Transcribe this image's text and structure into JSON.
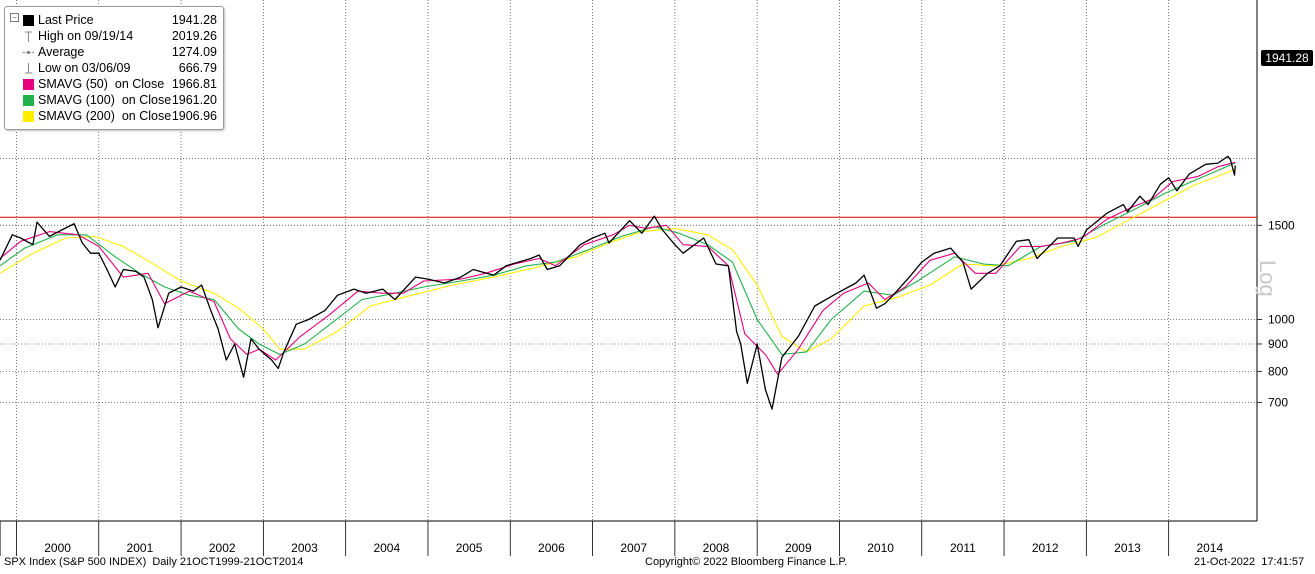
{
  "legend": {
    "items": [
      {
        "label": "Last Price",
        "value": "1941.28",
        "color": "#000000",
        "icon": "square-icon"
      },
      {
        "label": "High on 09/19/14",
        "value": "2019.26",
        "color": "#888888",
        "icon": "high-marker-icon"
      },
      {
        "label": "Average",
        "value": "1274.09",
        "color": "#888888",
        "icon": "average-line-icon"
      },
      {
        "label": "Low on 03/06/09",
        "value": "666.79",
        "color": "#888888",
        "icon": "low-marker-icon"
      },
      {
        "label": "SMAVG (50)  on Close",
        "value": "1966.81",
        "color": "#e6007e",
        "icon": "square-icon"
      },
      {
        "label": "SMAVG (100)  on Close",
        "value": "1961.20",
        "color": "#22b14c",
        "icon": "square-icon"
      },
      {
        "label": "SMAVG (200)  on Close",
        "value": "1906.96",
        "color": "#ffee00",
        "icon": "square-icon"
      }
    ]
  },
  "badge": {
    "last_value": "1941.28"
  },
  "axis_label": "Log",
  "footer": {
    "left": "SPX Index (S&P 500 INDEX)  Daily 21OCT1999-21OCT2014",
    "center": "Copyright© 2022 Bloomberg Finance L.P.",
    "right": "21-Oct-2022  17:41:57"
  },
  "chart_data": {
    "type": "line",
    "y_scale": "log",
    "ylim": [
      600,
      2100
    ],
    "y_ticks": [
      700,
      800,
      900,
      1000,
      1500
    ],
    "x_ticks": [
      "2000",
      "2001",
      "2002",
      "2003",
      "2004",
      "2005",
      "2006",
      "2007",
      "2008",
      "2009",
      "2010",
      "2011",
      "2012",
      "2013",
      "2014"
    ],
    "reference_line": {
      "value": 1553,
      "color": "#e00000"
    },
    "colors": {
      "price": "#000000",
      "sma50": "#e6007e",
      "sma100": "#22b14c",
      "sma200": "#ffee00"
    },
    "series": [
      {
        "name": "Last Price",
        "points": [
          [
            1999.8,
            1290
          ],
          [
            1999.95,
            1440
          ],
          [
            2000.05,
            1420
          ],
          [
            2000.2,
            1380
          ],
          [
            2000.25,
            1520
          ],
          [
            2000.4,
            1430
          ],
          [
            2000.55,
            1470
          ],
          [
            2000.7,
            1510
          ],
          [
            2000.8,
            1390
          ],
          [
            2000.9,
            1330
          ],
          [
            2001.0,
            1330
          ],
          [
            2001.1,
            1240
          ],
          [
            2001.2,
            1150
          ],
          [
            2001.3,
            1240
          ],
          [
            2001.45,
            1230
          ],
          [
            2001.55,
            1200
          ],
          [
            2001.65,
            1090
          ],
          [
            2001.72,
            965
          ],
          [
            2001.85,
            1120
          ],
          [
            2002.0,
            1150
          ],
          [
            2002.15,
            1130
          ],
          [
            2002.25,
            1160
          ],
          [
            2002.35,
            1050
          ],
          [
            2002.45,
            960
          ],
          [
            2002.55,
            840
          ],
          [
            2002.65,
            900
          ],
          [
            2002.76,
            780
          ],
          [
            2002.85,
            920
          ],
          [
            2002.95,
            880
          ],
          [
            2003.1,
            840
          ],
          [
            2003.18,
            810
          ],
          [
            2003.25,
            870
          ],
          [
            2003.4,
            980
          ],
          [
            2003.55,
            1000
          ],
          [
            2003.75,
            1040
          ],
          [
            2003.9,
            1110
          ],
          [
            2004.1,
            1140
          ],
          [
            2004.25,
            1120
          ],
          [
            2004.45,
            1140
          ],
          [
            2004.6,
            1090
          ],
          [
            2004.85,
            1200
          ],
          [
            2005.0,
            1190
          ],
          [
            2005.2,
            1170
          ],
          [
            2005.4,
            1200
          ],
          [
            2005.55,
            1240
          ],
          [
            2005.8,
            1210
          ],
          [
            2005.95,
            1260
          ],
          [
            2006.25,
            1300
          ],
          [
            2006.35,
            1320
          ],
          [
            2006.45,
            1240
          ],
          [
            2006.6,
            1260
          ],
          [
            2006.85,
            1380
          ],
          [
            2007.0,
            1420
          ],
          [
            2007.15,
            1450
          ],
          [
            2007.2,
            1390
          ],
          [
            2007.45,
            1530
          ],
          [
            2007.6,
            1450
          ],
          [
            2007.75,
            1560
          ],
          [
            2007.85,
            1470
          ],
          [
            2008.0,
            1380
          ],
          [
            2008.1,
            1330
          ],
          [
            2008.35,
            1420
          ],
          [
            2008.5,
            1270
          ],
          [
            2008.65,
            1260
          ],
          [
            2008.75,
            950
          ],
          [
            2008.8,
            900
          ],
          [
            2008.88,
            760
          ],
          [
            2009.0,
            900
          ],
          [
            2009.1,
            740
          ],
          [
            2009.18,
            680
          ],
          [
            2009.3,
            850
          ],
          [
            2009.5,
            930
          ],
          [
            2009.7,
            1060
          ],
          [
            2009.95,
            1115
          ],
          [
            2010.2,
            1170
          ],
          [
            2010.3,
            1210
          ],
          [
            2010.45,
            1050
          ],
          [
            2010.55,
            1070
          ],
          [
            2010.65,
            1110
          ],
          [
            2010.85,
            1200
          ],
          [
            2011.0,
            1280
          ],
          [
            2011.15,
            1330
          ],
          [
            2011.35,
            1360
          ],
          [
            2011.5,
            1280
          ],
          [
            2011.6,
            1140
          ],
          [
            2011.8,
            1220
          ],
          [
            2011.95,
            1260
          ],
          [
            2012.15,
            1400
          ],
          [
            2012.3,
            1410
          ],
          [
            2012.4,
            1300
          ],
          [
            2012.65,
            1420
          ],
          [
            2012.85,
            1420
          ],
          [
            2012.9,
            1370
          ],
          [
            2013.0,
            1470
          ],
          [
            2013.25,
            1580
          ],
          [
            2013.45,
            1640
          ],
          [
            2013.5,
            1590
          ],
          [
            2013.65,
            1700
          ],
          [
            2013.75,
            1640
          ],
          [
            2013.9,
            1790
          ],
          [
            2014.0,
            1840
          ],
          [
            2014.1,
            1740
          ],
          [
            2014.25,
            1870
          ],
          [
            2014.45,
            1950
          ],
          [
            2014.6,
            1960
          ],
          [
            2014.72,
            2019
          ],
          [
            2014.75,
            1990
          ],
          [
            2014.8,
            1862
          ],
          [
            2014.81,
            1941
          ]
        ]
      },
      {
        "name": "SMAVG (50)  on Close",
        "points": [
          [
            1999.8,
            1300
          ],
          [
            2000.05,
            1400
          ],
          [
            2000.4,
            1460
          ],
          [
            2000.75,
            1440
          ],
          [
            2001.0,
            1370
          ],
          [
            2001.3,
            1200
          ],
          [
            2001.6,
            1220
          ],
          [
            2001.8,
            1070
          ],
          [
            2002.1,
            1130
          ],
          [
            2002.4,
            1080
          ],
          [
            2002.6,
            920
          ],
          [
            2002.8,
            860
          ],
          [
            2002.95,
            880
          ],
          [
            2003.15,
            840
          ],
          [
            2003.45,
            930
          ],
          [
            2003.8,
            1020
          ],
          [
            2004.15,
            1130
          ],
          [
            2004.45,
            1120
          ],
          [
            2004.7,
            1120
          ],
          [
            2004.95,
            1180
          ],
          [
            2005.4,
            1190
          ],
          [
            2005.7,
            1220
          ],
          [
            2006.05,
            1270
          ],
          [
            2006.35,
            1300
          ],
          [
            2006.55,
            1260
          ],
          [
            2006.9,
            1380
          ],
          [
            2007.25,
            1440
          ],
          [
            2007.45,
            1500
          ],
          [
            2007.65,
            1480
          ],
          [
            2007.9,
            1500
          ],
          [
            2008.1,
            1380
          ],
          [
            2008.4,
            1370
          ],
          [
            2008.65,
            1260
          ],
          [
            2008.85,
            940
          ],
          [
            2009.1,
            860
          ],
          [
            2009.25,
            790
          ],
          [
            2009.5,
            880
          ],
          [
            2009.8,
            1040
          ],
          [
            2010.05,
            1120
          ],
          [
            2010.35,
            1170
          ],
          [
            2010.55,
            1090
          ],
          [
            2010.8,
            1150
          ],
          [
            2011.1,
            1290
          ],
          [
            2011.4,
            1330
          ],
          [
            2011.65,
            1220
          ],
          [
            2011.9,
            1220
          ],
          [
            2012.2,
            1370
          ],
          [
            2012.45,
            1370
          ],
          [
            2012.7,
            1390
          ],
          [
            2012.95,
            1420
          ],
          [
            2013.25,
            1540
          ],
          [
            2013.55,
            1620
          ],
          [
            2013.8,
            1680
          ],
          [
            2014.05,
            1810
          ],
          [
            2014.35,
            1850
          ],
          [
            2014.6,
            1930
          ],
          [
            2014.81,
            1967
          ]
        ]
      },
      {
        "name": "SMAVG (100)  on Close",
        "points": [
          [
            1999.8,
            1260
          ],
          [
            2000.1,
            1360
          ],
          [
            2000.5,
            1440
          ],
          [
            2000.85,
            1440
          ],
          [
            2001.2,
            1310
          ],
          [
            2001.5,
            1220
          ],
          [
            2001.8,
            1150
          ],
          [
            2002.1,
            1110
          ],
          [
            2002.4,
            1090
          ],
          [
            2002.7,
            960
          ],
          [
            2002.95,
            900
          ],
          [
            2003.2,
            860
          ],
          [
            2003.5,
            900
          ],
          [
            2003.85,
            990
          ],
          [
            2004.2,
            1090
          ],
          [
            2004.6,
            1120
          ],
          [
            2004.95,
            1150
          ],
          [
            2005.4,
            1180
          ],
          [
            2005.8,
            1210
          ],
          [
            2006.2,
            1260
          ],
          [
            2006.55,
            1280
          ],
          [
            2006.95,
            1350
          ],
          [
            2007.35,
            1430
          ],
          [
            2007.75,
            1490
          ],
          [
            2008.05,
            1450
          ],
          [
            2008.4,
            1380
          ],
          [
            2008.7,
            1280
          ],
          [
            2009.0,
            1000
          ],
          [
            2009.3,
            860
          ],
          [
            2009.6,
            870
          ],
          [
            2009.9,
            1000
          ],
          [
            2010.3,
            1130
          ],
          [
            2010.65,
            1110
          ],
          [
            2010.95,
            1180
          ],
          [
            2011.4,
            1310
          ],
          [
            2011.75,
            1270
          ],
          [
            2012.05,
            1260
          ],
          [
            2012.45,
            1370
          ],
          [
            2012.85,
            1400
          ],
          [
            2013.2,
            1500
          ],
          [
            2013.6,
            1610
          ],
          [
            2013.95,
            1720
          ],
          [
            2014.35,
            1830
          ],
          [
            2014.81,
            1961
          ]
        ]
      },
      {
        "name": "SMAVG (200)  on Close",
        "points": [
          [
            1999.8,
            1220
          ],
          [
            2000.2,
            1330
          ],
          [
            2000.6,
            1420
          ],
          [
            2000.95,
            1430
          ],
          [
            2001.3,
            1370
          ],
          [
            2001.7,
            1260
          ],
          [
            2002.0,
            1180
          ],
          [
            2002.4,
            1120
          ],
          [
            2002.7,
            1050
          ],
          [
            2003.0,
            960
          ],
          [
            2003.2,
            880
          ],
          [
            2003.5,
            880
          ],
          [
            2003.9,
            950
          ],
          [
            2004.3,
            1060
          ],
          [
            2004.8,
            1110
          ],
          [
            2005.3,
            1160
          ],
          [
            2005.8,
            1200
          ],
          [
            2006.3,
            1250
          ],
          [
            2006.8,
            1310
          ],
          [
            2007.2,
            1390
          ],
          [
            2007.6,
            1460
          ],
          [
            2008.0,
            1480
          ],
          [
            2008.4,
            1440
          ],
          [
            2008.7,
            1350
          ],
          [
            2009.0,
            1160
          ],
          [
            2009.3,
            930
          ],
          [
            2009.6,
            870
          ],
          [
            2009.9,
            920
          ],
          [
            2010.3,
            1060
          ],
          [
            2010.7,
            1100
          ],
          [
            2011.1,
            1160
          ],
          [
            2011.5,
            1270
          ],
          [
            2011.9,
            1260
          ],
          [
            2012.3,
            1300
          ],
          [
            2012.7,
            1370
          ],
          [
            2013.1,
            1420
          ],
          [
            2013.5,
            1530
          ],
          [
            2013.9,
            1650
          ],
          [
            2014.3,
            1780
          ],
          [
            2014.81,
            1907
          ]
        ]
      }
    ]
  }
}
